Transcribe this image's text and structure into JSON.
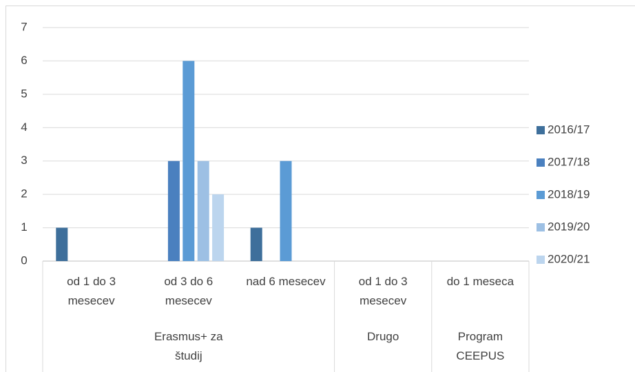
{
  "chart_data": {
    "type": "bar",
    "categories": [
      "od 1 do 3 mesecev",
      "od 3 do 6 mesecev",
      "nad 6 mesecev",
      "od 1 do 3 mesecev",
      "do 1 meseca"
    ],
    "category_groups": [
      "Erasmus+ za študij",
      "Erasmus+ za študij",
      "Erasmus+ za študij",
      "Drugo",
      "Program CEEPUS"
    ],
    "series": [
      {
        "name": "2016/17",
        "color": "#3e6f9b",
        "values": [
          1,
          0,
          1,
          0,
          0
        ]
      },
      {
        "name": "2017/18",
        "color": "#4a80bf",
        "values": [
          0,
          3,
          0,
          0,
          0
        ]
      },
      {
        "name": "2018/19",
        "color": "#5b9bd5",
        "values": [
          0,
          6,
          3,
          0,
          0
        ]
      },
      {
        "name": "2019/20",
        "color": "#9dc0e4",
        "values": [
          0,
          3,
          0,
          0,
          0
        ]
      },
      {
        "name": "2020/21",
        "color": "#bcd5ee",
        "values": [
          0,
          2,
          0,
          0,
          0
        ]
      }
    ],
    "ylim": [
      0,
      7
    ],
    "yticks": [
      0,
      1,
      2,
      3,
      4,
      5,
      6,
      7
    ],
    "grid": true,
    "legend": "right"
  }
}
